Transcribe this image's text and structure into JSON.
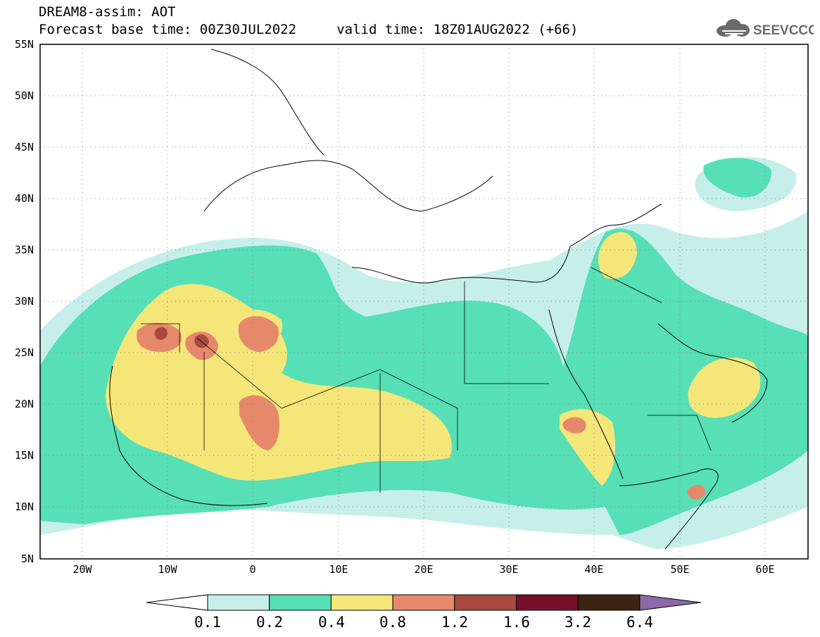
{
  "header": {
    "line1": "DREAM8-assim: AOT",
    "line2": "Forecast base time: 00Z30JUL2022     valid time: 18Z01AUG2022 (+66)"
  },
  "logo": {
    "text": "SEEVCCC",
    "icon": "cloud-icon"
  },
  "map": {
    "lon_range": [
      -25,
      65
    ],
    "lat_range": [
      5,
      55
    ],
    "lat_ticks": [
      "55N",
      "50N",
      "45N",
      "40N",
      "35N",
      "30N",
      "25N",
      "20N",
      "15N",
      "10N",
      "5N"
    ],
    "lon_ticks": [
      "20W",
      "10W",
      "0",
      "10E",
      "20E",
      "30E",
      "40E",
      "50E",
      "60E"
    ],
    "grid": "dotted"
  },
  "colorbar": {
    "labels": [
      "0.1",
      "0.2",
      "0.4",
      "0.8",
      "1.2",
      "1.6",
      "3.2",
      "6.4"
    ],
    "colors": [
      "#ffffff",
      "#c7efea",
      "#57dfb6",
      "#f5e67a",
      "#e6896b",
      "#a94a3f",
      "#7a0f2b",
      "#3d2412",
      "#8c6aa8"
    ]
  }
}
